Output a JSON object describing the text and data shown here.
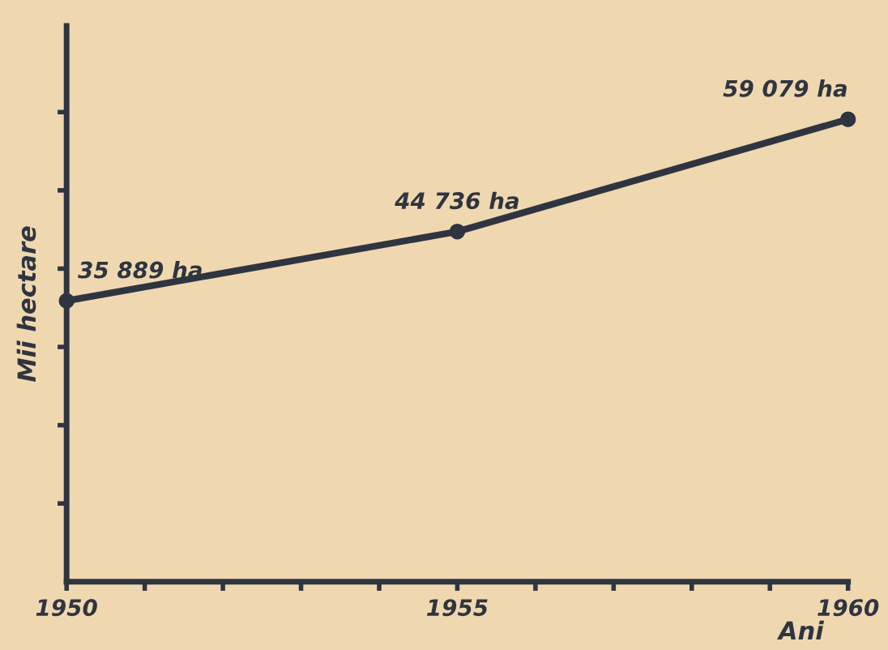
{
  "chart_data": {
    "type": "line",
    "ylabel": "Mii hectare",
    "xlabel": "Ani",
    "x": [
      1950,
      1955,
      1960
    ],
    "series": [
      {
        "color": "#2f3540",
        "values": [
          35889,
          44736,
          59079
        ],
        "value_labels": [
          "35 889 ha",
          "44 736 ha",
          "59 079 ha"
        ]
      }
    ],
    "xlim": [
      1950,
      1960
    ],
    "xticks": [
      1950,
      {
        "value": 1951,
        "label": null
      },
      {
        "value": 1952,
        "label": null
      },
      {
        "value": 1953,
        "label": null
      },
      {
        "value": 1954,
        "label": null
      },
      1955,
      {
        "value": 1956,
        "label": null
      },
      {
        "value": 1957,
        "label": null
      },
      {
        "value": 1958,
        "label": null
      },
      {
        "value": 1959,
        "label": null
      },
      1960
    ],
    "ylim": [
      0,
      71000
    ],
    "yticks": [
      {
        "value": 10000,
        "label": null
      },
      {
        "value": 20000,
        "label": null
      },
      {
        "value": 30000,
        "label": null
      },
      {
        "value": 40000,
        "label": null
      },
      {
        "value": 50000,
        "label": null
      },
      {
        "value": 60000,
        "label": null
      }
    ],
    "marker": "circle",
    "line_style": "solid",
    "grid": false,
    "legend": false
  }
}
